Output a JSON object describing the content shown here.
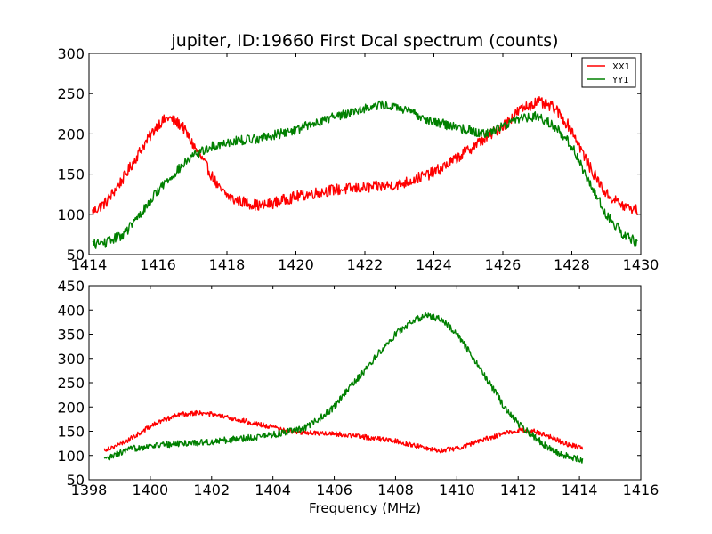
{
  "chart_data": [
    {
      "type": "line",
      "title": "jupiter, ID:19660 First Dcal spectrum (counts)",
      "xlabel": "",
      "ylabel": "",
      "xlim": [
        1414,
        1430
      ],
      "ylim": [
        50,
        300
      ],
      "xticks": [
        1414,
        1416,
        1418,
        1420,
        1422,
        1424,
        1426,
        1428,
        1430
      ],
      "yticks": [
        50,
        100,
        150,
        200,
        250,
        300
      ],
      "grid": false,
      "legend": "top-right",
      "x_range": [
        1414.1,
        1429.9
      ],
      "series": [
        {
          "name": "XX1",
          "color": "#ff0000",
          "noise": 7,
          "points": [
            [
              1414.1,
              103
            ],
            [
              1414.5,
              115
            ],
            [
              1415.0,
              145
            ],
            [
              1415.5,
              180
            ],
            [
              1416.0,
              212
            ],
            [
              1416.3,
              220
            ],
            [
              1416.7,
              210
            ],
            [
              1417.0,
              188
            ],
            [
              1417.4,
              160
            ],
            [
              1417.8,
              130
            ],
            [
              1418.2,
              118
            ],
            [
              1419.0,
              110
            ],
            [
              1420.0,
              122
            ],
            [
              1421.0,
              130
            ],
            [
              1422.0,
              133
            ],
            [
              1423.0,
              137
            ],
            [
              1424.0,
              152
            ],
            [
              1424.5,
              165
            ],
            [
              1425.0,
              180
            ],
            [
              1425.5,
              195
            ],
            [
              1426.0,
              210
            ],
            [
              1426.5,
              230
            ],
            [
              1427.0,
              240
            ],
            [
              1427.5,
              232
            ],
            [
              1428.0,
              205
            ],
            [
              1428.5,
              160
            ],
            [
              1429.0,
              125
            ],
            [
              1429.5,
              110
            ],
            [
              1429.9,
              105
            ]
          ]
        },
        {
          "name": "YY1",
          "color": "#008000",
          "noise": 6,
          "points": [
            [
              1414.1,
              63
            ],
            [
              1414.5,
              65
            ],
            [
              1415.0,
              75
            ],
            [
              1415.5,
              100
            ],
            [
              1416.0,
              130
            ],
            [
              1416.5,
              152
            ],
            [
              1417.0,
              172
            ],
            [
              1417.5,
              183
            ],
            [
              1418.0,
              190
            ],
            [
              1419.0,
              195
            ],
            [
              1420.0,
              205
            ],
            [
              1421.0,
              220
            ],
            [
              1422.0,
              232
            ],
            [
              1422.5,
              236
            ],
            [
              1423.0,
              232
            ],
            [
              1424.0,
              215
            ],
            [
              1425.0,
              205
            ],
            [
              1425.5,
              200
            ],
            [
              1426.0,
              210
            ],
            [
              1426.5,
              220
            ],
            [
              1427.0,
              222
            ],
            [
              1427.5,
              210
            ],
            [
              1428.0,
              185
            ],
            [
              1428.5,
              140
            ],
            [
              1429.0,
              100
            ],
            [
              1429.5,
              75
            ],
            [
              1429.9,
              65
            ]
          ]
        }
      ]
    },
    {
      "type": "line",
      "title": "",
      "xlabel": "Frequency (MHz)",
      "ylabel": "",
      "xlim": [
        1398,
        1416
      ],
      "ylim": [
        50,
        450
      ],
      "xticks": [
        1398,
        1400,
        1402,
        1404,
        1406,
        1408,
        1410,
        1412,
        1414,
        1416
      ],
      "yticks": [
        50,
        100,
        150,
        200,
        250,
        300,
        350,
        400,
        450
      ],
      "grid": false,
      "x_range": [
        1398.5,
        1414.1
      ],
      "series": [
        {
          "name": "XX1",
          "color": "#ff0000",
          "noise": 5,
          "points": [
            [
              1398.5,
              112
            ],
            [
              1399.0,
              122
            ],
            [
              1399.5,
              140
            ],
            [
              1400.0,
              160
            ],
            [
              1400.5,
              175
            ],
            [
              1401.0,
              185
            ],
            [
              1401.5,
              188
            ],
            [
              1402.0,
              185
            ],
            [
              1402.5,
              178
            ],
            [
              1403.0,
              172
            ],
            [
              1403.5,
              165
            ],
            [
              1404.0,
              158
            ],
            [
              1404.5,
              150
            ],
            [
              1405.0,
              147
            ],
            [
              1406.0,
              145
            ],
            [
              1407.0,
              138
            ],
            [
              1408.0,
              130
            ],
            [
              1409.0,
              115
            ],
            [
              1409.5,
              110
            ],
            [
              1410.0,
              115
            ],
            [
              1410.5,
              125
            ],
            [
              1411.0,
              135
            ],
            [
              1411.5,
              145
            ],
            [
              1412.0,
              152
            ],
            [
              1412.5,
              150
            ],
            [
              1413.0,
              140
            ],
            [
              1413.5,
              125
            ],
            [
              1414.1,
              115
            ]
          ]
        },
        {
          "name": "YY1",
          "color": "#008000",
          "noise": 7,
          "points": [
            [
              1398.5,
              90
            ],
            [
              1399.0,
              105
            ],
            [
              1399.5,
              115
            ],
            [
              1400.0,
              120
            ],
            [
              1401.0,
              125
            ],
            [
              1402.0,
              128
            ],
            [
              1403.0,
              135
            ],
            [
              1404.0,
              143
            ],
            [
              1405.0,
              155
            ],
            [
              1405.5,
              175
            ],
            [
              1406.0,
              200
            ],
            [
              1406.5,
              240
            ],
            [
              1407.0,
              275
            ],
            [
              1407.5,
              315
            ],
            [
              1408.0,
              350
            ],
            [
              1408.5,
              375
            ],
            [
              1409.0,
              390
            ],
            [
              1409.5,
              380
            ],
            [
              1410.0,
              350
            ],
            [
              1410.5,
              305
            ],
            [
              1411.0,
              255
            ],
            [
              1411.5,
              205
            ],
            [
              1412.0,
              165
            ],
            [
              1412.5,
              140
            ],
            [
              1413.0,
              115
            ],
            [
              1413.5,
              100
            ],
            [
              1414.1,
              90
            ]
          ]
        }
      ]
    }
  ]
}
